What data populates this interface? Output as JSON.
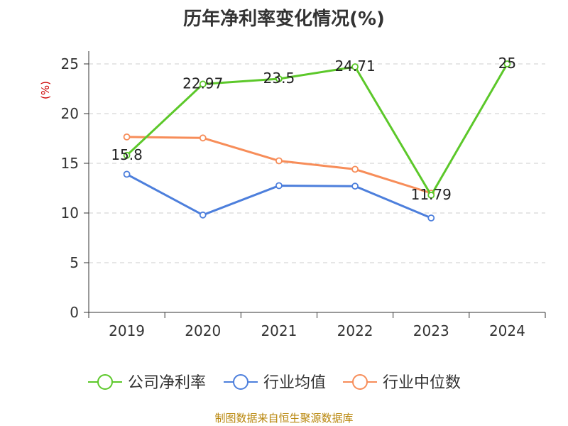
{
  "chart_data": {
    "type": "line",
    "title": "历年净利率变化情况(%)",
    "ylabel": "(%)",
    "xlabel": "",
    "categories": [
      "2019",
      "2020",
      "2021",
      "2022",
      "2023",
      "2024"
    ],
    "ylim": [
      0,
      25
    ],
    "yticks": [
      0,
      5,
      10,
      15,
      20,
      25
    ],
    "grid": true,
    "legend_position": "bottom",
    "series": [
      {
        "name": "公司净利率",
        "color": "#5cc82a",
        "values": [
          15.8,
          22.97,
          23.5,
          24.71,
          11.79,
          25
        ],
        "labels": [
          "15.8",
          "22.97",
          "23.5",
          "24.71",
          "11.79",
          "25"
        ]
      },
      {
        "name": "行业均值",
        "color": "#4d7fdc",
        "values": [
          13.9,
          9.8,
          12.75,
          12.7,
          9.5,
          null
        ]
      },
      {
        "name": "行业中位数",
        "color": "#f78d59",
        "values": [
          17.65,
          17.55,
          15.25,
          14.4,
          12.0,
          null
        ]
      }
    ]
  },
  "source": "制图数据来自恒生聚源数据库"
}
